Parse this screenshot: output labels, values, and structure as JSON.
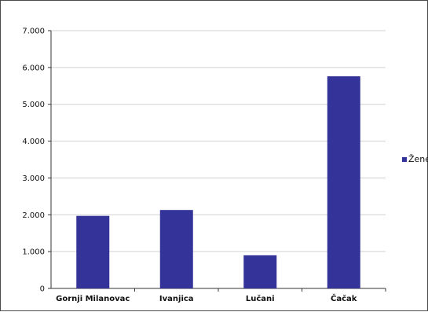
{
  "chart_data": {
    "type": "bar",
    "title": "",
    "xlabel": "",
    "ylabel": "",
    "categories": [
      "Gornji Milanovac",
      "Ivanjica",
      "Lučani",
      "Čačak"
    ],
    "series": [
      {
        "name": "Žene",
        "values": [
          1970,
          2130,
          900,
          5760
        ],
        "color": "#333399"
      }
    ],
    "ylim": [
      0,
      7000
    ],
    "y_ticks": [
      0,
      1000,
      2000,
      3000,
      4000,
      5000,
      6000,
      7000
    ],
    "y_tick_labels": [
      "0",
      "1.000",
      "2.000",
      "3.000",
      "4.000",
      "5.000",
      "6.000",
      "7.000"
    ],
    "grid": true,
    "legend_position": "right"
  }
}
